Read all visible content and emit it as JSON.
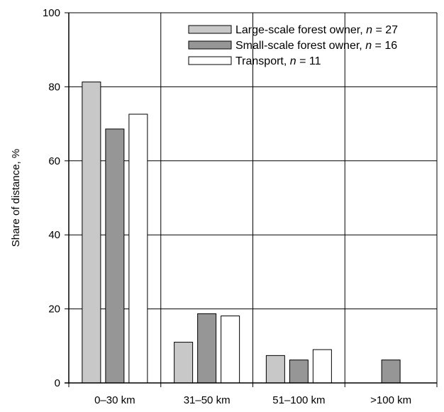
{
  "chart_data": {
    "type": "bar",
    "categories": [
      "0–30 km",
      "31–50 km",
      "51–100 km",
      ">100 km"
    ],
    "series": [
      {
        "name": "Large-scale forest owner, n = 27",
        "name_parts": [
          "Large-scale forest owner, ",
          "n",
          " = 27"
        ],
        "color": "#c8c8c8",
        "values": [
          81.3,
          11.0,
          7.4,
          0
        ]
      },
      {
        "name": "Small-scale forest owner, n = 16",
        "name_parts": [
          "Small-scale forest owner, ",
          "n",
          " = 16"
        ],
        "color": "#969696",
        "values": [
          68.6,
          18.7,
          6.2,
          6.2
        ]
      },
      {
        "name": "Transport, n = 11",
        "name_parts": [
          "Transport, ",
          "n",
          " = 11"
        ],
        "color": "#ffffff",
        "values": [
          72.6,
          18.1,
          9.0,
          0
        ]
      }
    ],
    "ylabel": "Share of distance, %",
    "xlabel": "",
    "ylim": [
      0,
      100
    ],
    "yticks": [
      0,
      20,
      40,
      60,
      80,
      100
    ],
    "grid": true,
    "legend_position": "top-right"
  }
}
